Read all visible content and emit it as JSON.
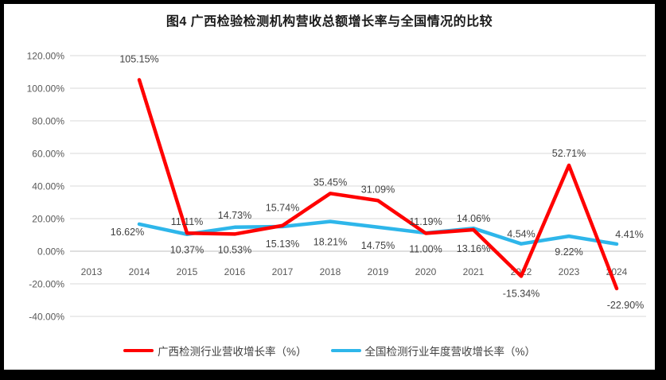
{
  "title": "图4 广西检验检测机构营收总额增长率与全国情况的比较",
  "frame": {
    "background": "#000000",
    "canvas_background": "#FFFFFF"
  },
  "chart_data": {
    "type": "line",
    "title": "图4 广西检验检测机构营收总额增长率与全国情况的比较",
    "x_categories": [
      "2013",
      "2014",
      "2015",
      "2016",
      "2017",
      "2018",
      "2019",
      "2020",
      "2021",
      "2022",
      "2023",
      "2024"
    ],
    "y_axis": {
      "min": -40,
      "max": 120,
      "step": 20,
      "ticks": [
        {
          "label": "120.00%",
          "value": 120
        },
        {
          "label": "100.00%",
          "value": 100
        },
        {
          "label": "80.00%",
          "value": 80
        },
        {
          "label": "60.00%",
          "value": 60
        },
        {
          "label": "40.00%",
          "value": 40
        },
        {
          "label": "20.00%",
          "value": 20
        },
        {
          "label": "0.00%",
          "value": 0
        },
        {
          "label": "-20.00%",
          "value": -20
        },
        {
          "label": "-40.00%",
          "value": -40
        }
      ]
    },
    "grid": true,
    "legend_position": "bottom",
    "series": [
      {
        "name": "广西检测行业营收增长率（%）",
        "color": "#FF0000",
        "x": [
          "2014",
          "2015",
          "2016",
          "2017",
          "2018",
          "2019",
          "2020",
          "2021",
          "2022",
          "2023",
          "2024"
        ],
        "values": [
          105.15,
          11.11,
          10.53,
          15.74,
          35.45,
          31.09,
          11.0,
          13.16,
          -15.34,
          52.71,
          -22.9
        ],
        "labels": [
          "105.15%",
          "11.11%",
          "10.53%",
          "15.74%",
          "35.45%",
          "31.09%",
          "11.00%",
          "13.16%",
          "-15.34%",
          "52.71%",
          "-22.90%"
        ]
      },
      {
        "name": "全国检测行业年度营收增长率（%）",
        "color": "#2EB6EA",
        "x": [
          "2014",
          "2015",
          "2016",
          "2017",
          "2018",
          "2019",
          "2020",
          "2021",
          "2022",
          "2023",
          "2024"
        ],
        "values": [
          16.62,
          10.37,
          14.73,
          15.13,
          18.21,
          14.75,
          11.19,
          14.06,
          4.54,
          9.22,
          4.41
        ],
        "labels": [
          "16.62%",
          "10.37%",
          "14.73%",
          "15.13%",
          "18.21%",
          "14.75%",
          "11.19%",
          "14.06%",
          "4.54%",
          "9.22%",
          "4.41%"
        ]
      }
    ],
    "colors": {
      "gridline": "#D9D9D9",
      "axis_line": "#BFBFBF",
      "tick_text": "#595959",
      "data_label": "#404040"
    }
  },
  "legend": {
    "items": [
      {
        "label": "广西检测行业营收增长率（%）",
        "color": "#FF0000"
      },
      {
        "label": "全国检测行业年度营收增长率（%）",
        "color": "#2EB6EA"
      }
    ]
  }
}
